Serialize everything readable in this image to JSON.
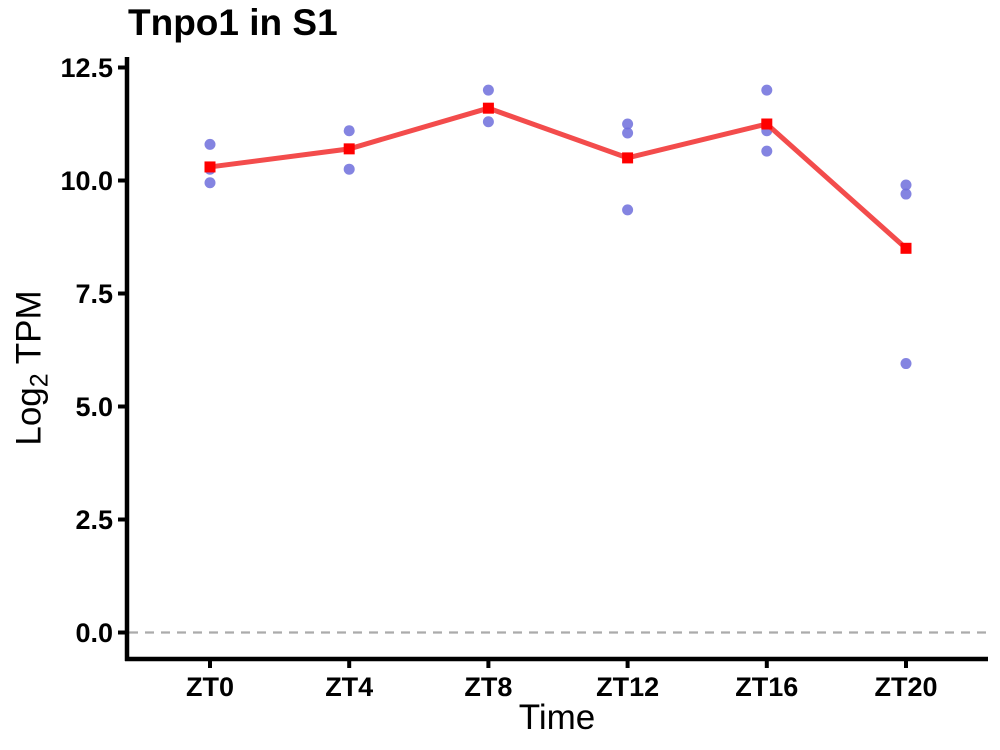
{
  "figure": {
    "title": "Tnpo1 in S1"
  },
  "chart_data": {
    "type": "line",
    "title": "Tnpo1 in S1",
    "xlabel": "Time",
    "ylabel": "Log2 TPM",
    "ylabel_parts": {
      "pre": "Log",
      "sub": "2",
      "post": " TPM"
    },
    "categories": [
      "ZT0",
      "ZT4",
      "ZT8",
      "ZT12",
      "ZT16",
      "ZT20"
    ],
    "ytick_labels": [
      "0.0",
      "2.5",
      "5.0",
      "7.5",
      "10.0",
      "12.5"
    ],
    "ytick_values": [
      0.0,
      2.5,
      5.0,
      7.5,
      10.0,
      12.5
    ],
    "ylim": [
      0,
      12.5
    ],
    "grid": false,
    "legend": false,
    "zero_line": {
      "y": 0,
      "style": "dashed",
      "color": "#ABABAB"
    },
    "colors": {
      "axis": "#000000",
      "replicate_point": "#6E6EDC",
      "mean_line": "#F34C4C",
      "mean_marker": "#FF0000"
    },
    "series": [
      {
        "name": "replicates",
        "type": "scatter",
        "points": [
          {
            "category": "ZT0",
            "values": [
              10.8,
              10.25,
              9.95
            ]
          },
          {
            "category": "ZT4",
            "values": [
              11.1,
              10.25
            ]
          },
          {
            "category": "ZT8",
            "values": [
              12.0,
              11.3
            ]
          },
          {
            "category": "ZT12",
            "values": [
              11.25,
              11.05,
              9.35
            ]
          },
          {
            "category": "ZT16",
            "values": [
              12.0,
              11.1,
              10.65
            ]
          },
          {
            "category": "ZT20",
            "values": [
              9.9,
              9.7,
              5.95
            ]
          }
        ]
      },
      {
        "name": "mean",
        "type": "line_with_square_markers",
        "values": [
          10.3,
          10.7,
          11.6,
          10.5,
          11.25,
          8.5
        ]
      }
    ]
  }
}
